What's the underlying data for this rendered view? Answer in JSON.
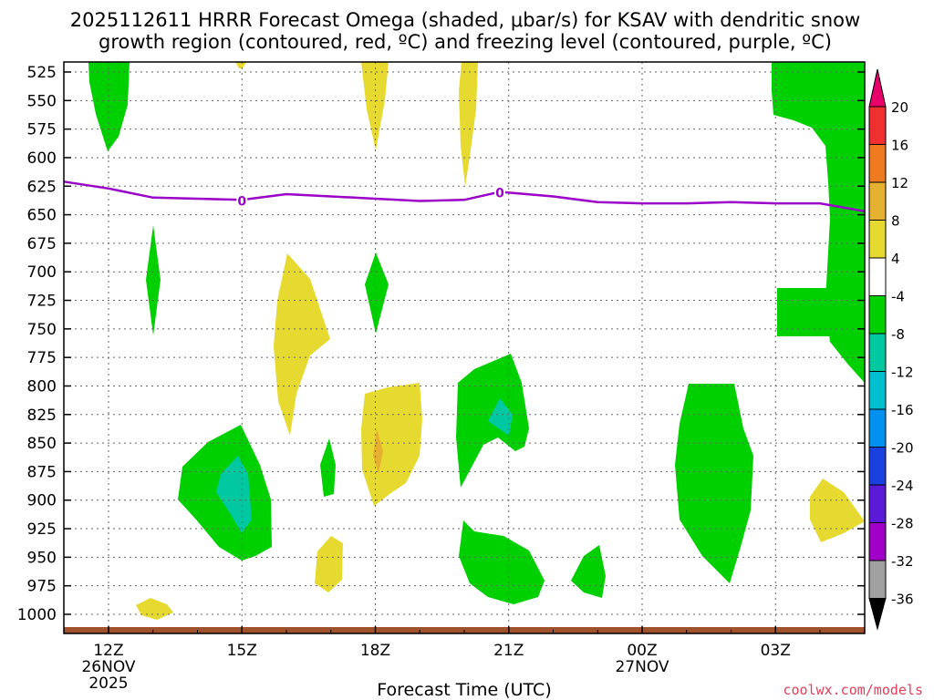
{
  "chart_data": {
    "type": "contour",
    "title_line1": "2025112611 HRRR Forecast Omega (shaded, μbar/s) for KSAV with dendritic snow",
    "title_line2": "growth region (contoured, red, ºC) and freezing level (contoured, purple, ºC)",
    "xlabel": "Forecast Time (UTC)",
    "credit": "coolwx.com/models",
    "y_axis": {
      "ticks": [
        525,
        550,
        575,
        600,
        625,
        650,
        675,
        700,
        725,
        750,
        775,
        800,
        825,
        850,
        875,
        900,
        925,
        950,
        975,
        1000
      ],
      "labels": [
        "525",
        "550",
        "575",
        "600",
        "625",
        "650",
        "675",
        "700",
        "725",
        "750",
        "775",
        "800",
        "825",
        "850",
        "875",
        "900",
        "925",
        "950",
        "975",
        "1000"
      ]
    },
    "x_axis": {
      "hours": [
        0,
        3,
        6,
        9,
        12,
        15
      ],
      "labels": [
        {
          "line1": "12Z",
          "line2": "26NOV",
          "line3": "2025"
        },
        {
          "line1": "15Z",
          "line2": "",
          "line3": ""
        },
        {
          "line1": "18Z",
          "line2": "",
          "line3": ""
        },
        {
          "line1": "21Z",
          "line2": "",
          "line3": ""
        },
        {
          "line1": "00Z",
          "line2": "27NOV",
          "line3": ""
        },
        {
          "line1": "03Z",
          "line2": "",
          "line3": ""
        }
      ]
    },
    "freezing_level": {
      "label": "0",
      "hours": [
        -1,
        0,
        1,
        2,
        3,
        4,
        5,
        6,
        7,
        8,
        8.8,
        10,
        11,
        12,
        13,
        14,
        15,
        16,
        17
      ],
      "pressure": [
        621,
        627,
        635,
        636,
        637,
        632,
        634,
        636,
        638,
        637,
        630,
        634,
        639,
        640,
        640,
        639,
        640,
        640,
        647
      ],
      "label_hours": [
        3,
        8.8
      ]
    },
    "colorbar": {
      "levels": [
        "20",
        "16",
        "12",
        "8",
        "4",
        "-4",
        "-8",
        "-12",
        "-16",
        "-20",
        "-24",
        "-28",
        "-32",
        "-36"
      ],
      "colors": [
        "#e8006a",
        "#f03030",
        "#f07a20",
        "#e6b030",
        "#e6da30",
        "#ffffff",
        "#00d000",
        "#00c8a0",
        "#00c0d0",
        "#0090f0",
        "#1a40e0",
        "#5a1ad8",
        "#a000c8",
        "#a0a0a0",
        "#000000"
      ]
    }
  }
}
